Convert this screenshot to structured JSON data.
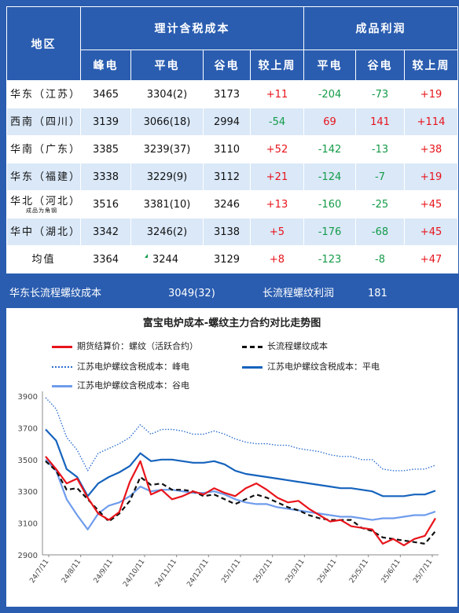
{
  "table": {
    "header": {
      "region": "地区",
      "cost_group": "理计含税成本",
      "profit_group": "成品利润",
      "cost_cols": [
        "峰电",
        "平电",
        "谷电",
        "较上周"
      ],
      "profit_cols": [
        "平电",
        "谷电",
        "较上周"
      ]
    },
    "rows": [
      {
        "region": "华东（江苏）",
        "sub": "",
        "peak": "3465",
        "flat": "3304(2)",
        "valley": "3173",
        "cost_wow": "+11",
        "p_flat": "-204",
        "p_valley": "-73",
        "p_wow": "+19"
      },
      {
        "region": "西南（四川）",
        "sub": "",
        "peak": "3139",
        "flat": "3066(18)",
        "valley": "2994",
        "cost_wow": "-54",
        "p_flat": "69",
        "p_valley": "141",
        "p_wow": "+114"
      },
      {
        "region": "华南（广东）",
        "sub": "",
        "peak": "3385",
        "flat": "3239(37)",
        "valley": "3110",
        "cost_wow": "+52",
        "p_flat": "-142",
        "p_valley": "-13",
        "p_wow": "+38"
      },
      {
        "region": "华东（福建）",
        "sub": "",
        "peak": "3338",
        "flat": "3229(9)",
        "valley": "3112",
        "cost_wow": "+21",
        "p_flat": "-124",
        "p_valley": "-7",
        "p_wow": "+19"
      },
      {
        "region": "华北（河北）",
        "sub": "成品为角钢",
        "peak": "3516",
        "flat": "3381(10)",
        "valley": "3246",
        "cost_wow": "+13",
        "p_flat": "-160",
        "p_valley": "-25",
        "p_wow": "+45"
      },
      {
        "region": "华中（湖北）",
        "sub": "",
        "peak": "3342",
        "flat": "3246(2)",
        "valley": "3138",
        "cost_wow": "+5",
        "p_flat": "-176",
        "p_valley": "-68",
        "p_wow": "+45"
      },
      {
        "region": "均值",
        "sub": "",
        "peak": "3364",
        "flat": "3244",
        "valley": "3129",
        "cost_wow": "+8",
        "p_flat": "-123",
        "p_valley": "-8",
        "p_wow": "+47"
      }
    ]
  },
  "footer": {
    "long_cost_label": "华东长流程螺纹成本",
    "long_cost_value": "3049(32)",
    "long_profit_label": "长流程螺纹利润",
    "long_profit_value": "181"
  },
  "colors": {
    "header_bg": "#2a5db0",
    "row_alt": "#dae8f8",
    "positive": "#e8141b",
    "negative": "#139b48"
  },
  "chart_data": {
    "type": "line",
    "title": "富宝电炉成本-螺纹主力合约对比走势图",
    "xlabel": "",
    "ylabel": "",
    "ylim": [
      2900,
      3900
    ],
    "yticks": [
      2900,
      3100,
      3300,
      3500,
      3700,
      3900
    ],
    "grid": false,
    "legend_position": "top",
    "x_tick_labels": [
      "24/7/11",
      "24/8/11",
      "24/9/11",
      "24/10/11",
      "24/11/11",
      "24/12/11",
      "25/1/11",
      "25/2/11",
      "25/3/11",
      "25/4/11",
      "25/5/11",
      "25/6/11",
      "25/7/11"
    ],
    "series": [
      {
        "name": "期货结算价：螺纹（活跃合约）",
        "color": "#e8141b",
        "style": "solid",
        "values": [
          3520,
          3440,
          3350,
          3380,
          3260,
          3160,
          3120,
          3170,
          3360,
          3490,
          3280,
          3310,
          3250,
          3270,
          3300,
          3280,
          3320,
          3290,
          3270,
          3320,
          3350,
          3310,
          3260,
          3230,
          3240,
          3190,
          3150,
          3110,
          3120,
          3080,
          3070,
          3060,
          2970,
          3000,
          2960,
          3000,
          3020,
          3130
        ]
      },
      {
        "name": "长流程螺纹成本",
        "color": "#111111",
        "style": "dashed",
        "values": [
          3490,
          3430,
          3310,
          3320,
          3250,
          3180,
          3110,
          3160,
          3240,
          3390,
          3340,
          3350,
          3310,
          3310,
          3300,
          3270,
          3280,
          3250,
          3220,
          3250,
          3280,
          3260,
          3230,
          3200,
          3180,
          3150,
          3130,
          3120,
          3120,
          3120,
          3070,
          3050,
          3010,
          3000,
          2990,
          2980,
          2970,
          3049
        ]
      },
      {
        "name": "江苏电炉螺纹含税成本：峰电",
        "color": "#2e6fd0",
        "style": "dotted",
        "values": [
          3890,
          3820,
          3640,
          3560,
          3430,
          3540,
          3570,
          3600,
          3640,
          3720,
          3660,
          3690,
          3690,
          3680,
          3660,
          3660,
          3680,
          3660,
          3630,
          3610,
          3600,
          3600,
          3590,
          3590,
          3570,
          3560,
          3550,
          3530,
          3520,
          3520,
          3500,
          3500,
          3440,
          3430,
          3430,
          3440,
          3440,
          3465
        ]
      },
      {
        "name": "江苏电炉螺纹含税成本：平电",
        "color": "#1563bd",
        "style": "solid",
        "values": [
          3690,
          3620,
          3440,
          3390,
          3270,
          3350,
          3390,
          3420,
          3460,
          3540,
          3490,
          3500,
          3500,
          3490,
          3480,
          3480,
          3490,
          3470,
          3430,
          3410,
          3400,
          3390,
          3380,
          3370,
          3360,
          3350,
          3340,
          3330,
          3320,
          3320,
          3310,
          3300,
          3270,
          3270,
          3270,
          3280,
          3280,
          3304
        ]
      },
      {
        "name": "江苏电炉螺纹含税成本：谷电",
        "color": "#6f9cec",
        "style": "solid",
        "values": [
          3500,
          3430,
          3250,
          3150,
          3060,
          3160,
          3210,
          3230,
          3270,
          3330,
          3300,
          3310,
          3310,
          3300,
          3290,
          3290,
          3300,
          3280,
          3250,
          3230,
          3220,
          3220,
          3200,
          3190,
          3180,
          3170,
          3160,
          3150,
          3140,
          3140,
          3130,
          3120,
          3130,
          3130,
          3140,
          3150,
          3150,
          3173
        ]
      }
    ]
  }
}
